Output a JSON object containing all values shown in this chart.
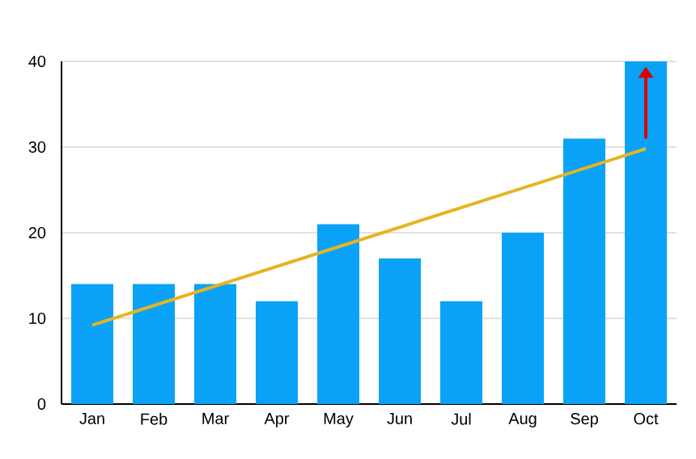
{
  "chart_data": {
    "type": "bar",
    "categories": [
      "Jan",
      "Feb",
      "Mar",
      "Apr",
      "May",
      "Jun",
      "Jul",
      "Aug",
      "Sep",
      "Oct"
    ],
    "series": [
      {
        "color": "#0aa2f7",
        "values": [
          14,
          14,
          14,
          12,
          21,
          17,
          12,
          20,
          31,
          40
        ]
      },
      {
        "type": "line",
        "color": "#e6b422",
        "values": [
          9.2,
          null,
          null,
          null,
          null,
          null,
          null,
          null,
          null,
          29.8
        ]
      }
    ],
    "ylim": [
      0,
      40
    ],
    "yticks": [
      0,
      10,
      20,
      30,
      40
    ],
    "grid": "y"
  }
}
